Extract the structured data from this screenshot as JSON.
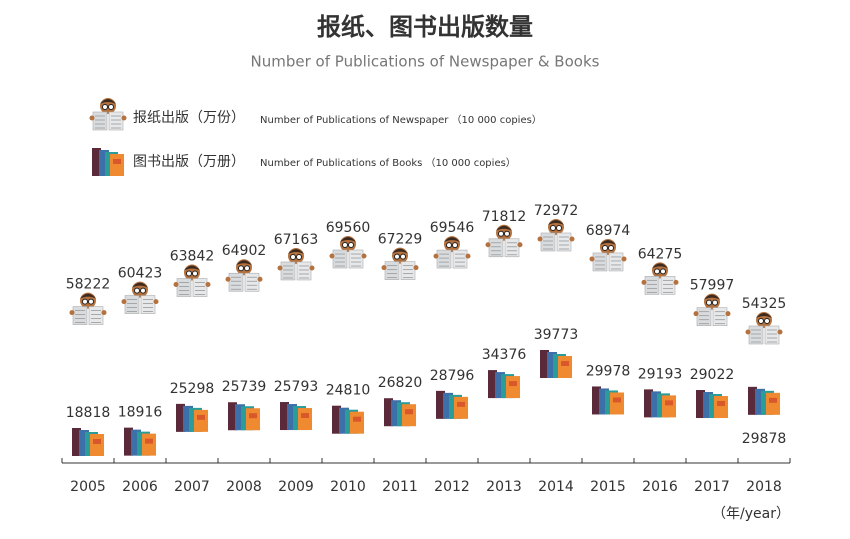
{
  "chart_data": {
    "type": "icon_scatter",
    "title": "报纸、图书出版数量",
    "subtitle": "Number of Publications of Newspaper & Books",
    "x_unit": "（年/year）",
    "categories": [
      "2005",
      "2006",
      "2007",
      "2008",
      "2009",
      "2010",
      "2011",
      "2012",
      "2013",
      "2014",
      "2015",
      "2016",
      "2017",
      "2018"
    ],
    "series": [
      {
        "name": "报纸出版（万份）",
        "legend_en": "Number of Publications of Newspaper （10 000 copies）",
        "icon": "newspaper",
        "values": [
          58222,
          60423,
          63842,
          64902,
          67163,
          69560,
          67229,
          69546,
          71812,
          72972,
          68974,
          64275,
          57997,
          54325
        ]
      },
      {
        "name": "图书出版（万册）",
        "legend_en": "Number of Publications of Books （10 000 copies）",
        "icon": "books",
        "values": [
          18818,
          18916,
          25298,
          25739,
          25793,
          24810,
          26820,
          28796,
          34376,
          39773,
          29978,
          29193,
          29022,
          29878
        ]
      }
    ]
  }
}
